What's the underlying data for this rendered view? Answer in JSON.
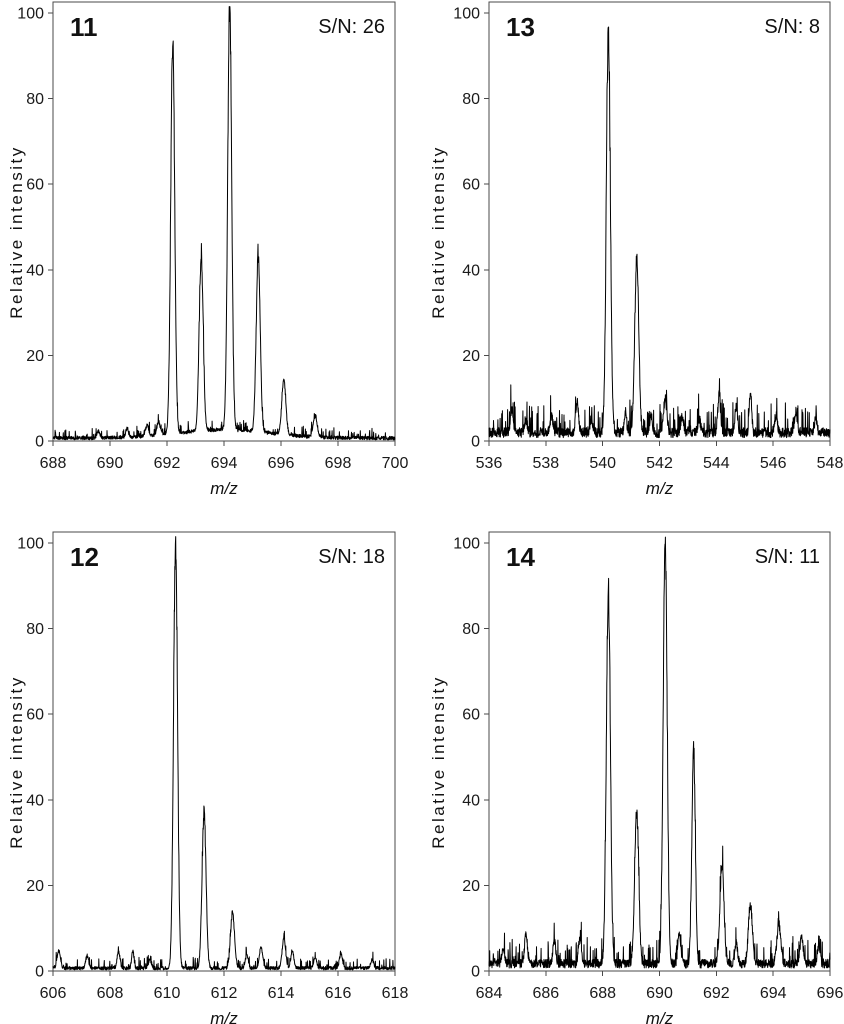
{
  "colors": {
    "background": "#ffffff",
    "trace": "#000000",
    "axis_frame": "#4a4a4a",
    "text": "#1a1a1a"
  },
  "chart_data": [
    {
      "type": "line",
      "panel_label": "11",
      "sn_label": "S/N: 26",
      "xlabel": "m/z",
      "ylabel": "Relative intensity",
      "xlim": [
        688,
        700
      ],
      "ylim": [
        0,
        100
      ],
      "xticks": [
        688,
        690,
        692,
        694,
        696,
        698,
        700
      ],
      "yticks": [
        0,
        20,
        40,
        60,
        80,
        100
      ],
      "peaks": [
        {
          "mz": 692.2,
          "h": 91
        },
        {
          "mz": 693.2,
          "h": 41
        },
        {
          "mz": 694.2,
          "h": 99
        },
        {
          "mz": 695.2,
          "h": 41
        },
        {
          "mz": 696.1,
          "h": 13
        },
        {
          "mz": 697.2,
          "h": 5
        },
        {
          "mz": 689.6,
          "h": 1.5,
          "w": 0.05
        },
        {
          "mz": 690.6,
          "h": 2,
          "w": 0.05
        },
        {
          "mz": 691.3,
          "h": 2.5,
          "w": 0.06
        },
        {
          "mz": 691.7,
          "h": 3,
          "w": 0.06
        },
        {
          "mz": 694.0,
          "h": 2,
          "w": 1.6
        }
      ],
      "noise_level": 0.9,
      "seed": 11
    },
    {
      "type": "line",
      "panel_label": "13",
      "sn_label": "S/N: 8",
      "xlabel": "m/z",
      "ylabel": "Relative intensity",
      "xlim": [
        536,
        548
      ],
      "ylim": [
        0,
        100
      ],
      "xticks": [
        536,
        538,
        540,
        542,
        544,
        546,
        548
      ],
      "yticks": [
        0,
        20,
        40,
        60,
        80,
        100
      ],
      "peaks": [
        {
          "mz": 540.2,
          "h": 93
        },
        {
          "mz": 541.2,
          "h": 41
        },
        {
          "mz": 536.8,
          "h": 5,
          "w": 0.05
        },
        {
          "mz": 537.3,
          "h": 3,
          "w": 0.05
        },
        {
          "mz": 538.2,
          "h": 4,
          "w": 0.05
        },
        {
          "mz": 539.1,
          "h": 7,
          "w": 0.05
        },
        {
          "mz": 539.6,
          "h": 3,
          "w": 0.05
        },
        {
          "mz": 540.8,
          "h": 5,
          "w": 0.04
        },
        {
          "mz": 541.7,
          "h": 4,
          "w": 0.05
        },
        {
          "mz": 542.2,
          "h": 8,
          "w": 0.06
        },
        {
          "mz": 542.8,
          "h": 4,
          "w": 0.05
        },
        {
          "mz": 543.4,
          "h": 3,
          "w": 0.05
        },
        {
          "mz": 544.1,
          "h": 9,
          "w": 0.05
        },
        {
          "mz": 544.7,
          "h": 6,
          "w": 0.05
        },
        {
          "mz": 545.2,
          "h": 10,
          "w": 0.04
        },
        {
          "mz": 546.1,
          "h": 4,
          "w": 0.05
        },
        {
          "mz": 546.8,
          "h": 5,
          "w": 0.05
        },
        {
          "mz": 547.5,
          "h": 4,
          "w": 0.04
        }
      ],
      "noise_level": 2.6,
      "seed": 13
    },
    {
      "type": "line",
      "panel_label": "12",
      "sn_label": "S/N: 18",
      "xlabel": "m/z",
      "ylabel": "Relative intensity",
      "xlim": [
        606,
        618
      ],
      "ylim": [
        0,
        100
      ],
      "xticks": [
        606,
        608,
        610,
        612,
        614,
        616,
        618
      ],
      "yticks": [
        0,
        20,
        40,
        60,
        80,
        100
      ],
      "peaks": [
        {
          "mz": 610.3,
          "h": 99
        },
        {
          "mz": 611.3,
          "h": 36
        },
        {
          "mz": 612.3,
          "h": 13
        },
        {
          "mz": 606.2,
          "h": 4,
          "w": 0.06
        },
        {
          "mz": 607.2,
          "h": 3,
          "w": 0.05
        },
        {
          "mz": 608.3,
          "h": 4,
          "w": 0.05
        },
        {
          "mz": 608.8,
          "h": 4,
          "w": 0.04
        },
        {
          "mz": 609.4,
          "h": 2,
          "w": 0.05
        },
        {
          "mz": 612.8,
          "h": 3,
          "w": 0.05
        },
        {
          "mz": 613.3,
          "h": 5,
          "w": 0.06
        },
        {
          "mz": 614.1,
          "h": 7,
          "w": 0.06
        },
        {
          "mz": 614.4,
          "h": 4,
          "w": 0.05
        },
        {
          "mz": 615.2,
          "h": 2.5,
          "w": 0.05
        },
        {
          "mz": 616.1,
          "h": 3.5,
          "w": 0.05
        },
        {
          "mz": 617.2,
          "h": 2,
          "w": 0.05
        }
      ],
      "noise_level": 0.9,
      "seed": 12
    },
    {
      "type": "line",
      "panel_label": "14",
      "sn_label": "S/N: 11",
      "xlabel": "m/z",
      "ylabel": "Relative intensity",
      "xlim": [
        684,
        696
      ],
      "ylim": [
        0,
        100
      ],
      "xticks": [
        684,
        686,
        688,
        690,
        692,
        694,
        696
      ],
      "yticks": [
        0,
        20,
        40,
        60,
        80,
        100
      ],
      "peaks": [
        {
          "mz": 688.2,
          "h": 87
        },
        {
          "mz": 689.2,
          "h": 36
        },
        {
          "mz": 690.2,
          "h": 98
        },
        {
          "mz": 691.2,
          "h": 50,
          "w": 0.06
        },
        {
          "mz": 692.2,
          "h": 23
        },
        {
          "mz": 693.2,
          "h": 14
        },
        {
          "mz": 694.2,
          "h": 9
        },
        {
          "mz": 684.5,
          "h": 4,
          "w": 0.05
        },
        {
          "mz": 685.3,
          "h": 7,
          "w": 0.05
        },
        {
          "mz": 686.3,
          "h": 5,
          "w": 0.05
        },
        {
          "mz": 687.2,
          "h": 6,
          "w": 0.05
        },
        {
          "mz": 690.7,
          "h": 7,
          "w": 0.05
        },
        {
          "mz": 692.7,
          "h": 5,
          "w": 0.05
        },
        {
          "mz": 695.0,
          "h": 6,
          "w": 0.06
        },
        {
          "mz": 695.6,
          "h": 4,
          "w": 0.05
        }
      ],
      "noise_level": 2.3,
      "seed": 14
    }
  ]
}
